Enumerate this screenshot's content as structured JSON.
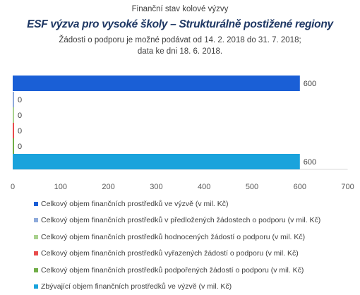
{
  "chart_data": {
    "type": "bar",
    "orientation": "horizontal",
    "supertitle": "Finanční stav kolové výzvy",
    "title": "ESF výzva pro vysoké školy – Strukturálně postižené regiony",
    "subtitle_line1": "Žádosti o podporu je možné podávat od 14. 2. 2018 do 31. 7. 2018;",
    "subtitle_line2": "data ke dni 18. 6. 2018.",
    "xlim": [
      0,
      700
    ],
    "xticks": [
      "0",
      "100",
      "200",
      "300",
      "400",
      "500",
      "600",
      "700"
    ],
    "grid": false,
    "legend_position": "bottom",
    "series": [
      {
        "name": "Celkový objem finančních prostředků ve výzvě (v mil. Kč)",
        "value": 600,
        "label": "600",
        "color": "#1a5fd6"
      },
      {
        "name": "Celkový objem finančních prostředků v předložených žádostech o podporu (v mil. Kč)",
        "value": 0,
        "label": "0",
        "color": "#8eaadb"
      },
      {
        "name": "Celkový objem finančních prostředků hodnocených žádostí o podporu (v mil. Kč)",
        "value": 0,
        "label": "0",
        "color": "#a9d18e"
      },
      {
        "name": "Celkový objem finančních prostředků vyřazených žádostí o podporu (v mil. Kč)",
        "value": 0,
        "label": "0",
        "color": "#e84c4c"
      },
      {
        "name": "Celkový objem finančních prostředků podpořených žádostí o podporu (v mil. Kč)",
        "value": 0,
        "label": "0",
        "color": "#70ad47"
      },
      {
        "name": "Zbývající objem finančních prostředků ve výzvě (v mil. Kč)",
        "value": 600,
        "label": "600",
        "color": "#1aa3dc"
      }
    ]
  }
}
